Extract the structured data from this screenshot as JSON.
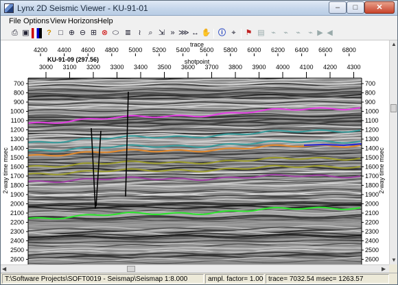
{
  "window": {
    "title": "Lynx 2D Seismic Viewer - KU-91-01"
  },
  "title_buttons": {
    "minimize": "–",
    "maximize": "□",
    "close": "✕"
  },
  "menu": [
    "File",
    "Options",
    "View",
    "Horizons",
    "Help"
  ],
  "toolbar": [
    "printer-icon",
    "camera-icon",
    "colorbar-icon",
    "help-icon",
    "select-rect-icon",
    "zoom-in-icon",
    "zoom-out-icon",
    "zoom-box-icon",
    "zoom-reset-icon",
    "lasso-icon",
    "stack-icon",
    "trace-wiggle-icon",
    "find-icon",
    "fit-icon",
    "fast-forward-icon",
    "stretch-icon",
    "pan-icon",
    "info-icon",
    "cursor-sample-icon",
    "pick-icon",
    "save-icon",
    "horizon-icon",
    "horizon-add-icon",
    "horizon-auto-icon",
    "horizon-delete-icon",
    "play-icon",
    "back-icon"
  ],
  "plot": {
    "top_axis_name": "trace",
    "top_axis_ticks": [
      "4200",
      "4400",
      "4600",
      "4800",
      "5000",
      "5200",
      "5400",
      "5600",
      "5800",
      "6000",
      "6200",
      "6400",
      "6600",
      "6800"
    ],
    "shot_axis_name": "shotpoint",
    "shot_axis_ticks": [
      "3000",
      "3100",
      "3200",
      "3300",
      "3400",
      "3500",
      "3600",
      "3700",
      "3800",
      "3900",
      "4000",
      "4100",
      "4200",
      "4300"
    ],
    "tie_label": "KU-91-09 (297.56)",
    "y_axis_label": "2-way time msec",
    "y_ticks": [
      "700",
      "800",
      "900",
      "1000",
      "1100",
      "1200",
      "1300",
      "1400",
      "1500",
      "1600",
      "1700",
      "1800",
      "1900",
      "2000",
      "2100",
      "2200",
      "2300",
      "2400",
      "2500",
      "2600"
    ],
    "horizon_colors": {
      "magenta": "#e040e0",
      "teal": "#3a9a9a",
      "orange": "#e08a30",
      "olive": "#9a9a30",
      "purple": "#9a40a0",
      "green": "#30e030",
      "blue": "#2a2ad0"
    }
  },
  "status": {
    "path": "T:\\Software Projects\\SOFT0019 - Seismap\\Seismap",
    "scale": "1:8.000",
    "ampl_label": "ampl. factor=",
    "ampl_value": "1.000",
    "trace_readout": "trace= 7032.54 msec= 1263.57"
  }
}
